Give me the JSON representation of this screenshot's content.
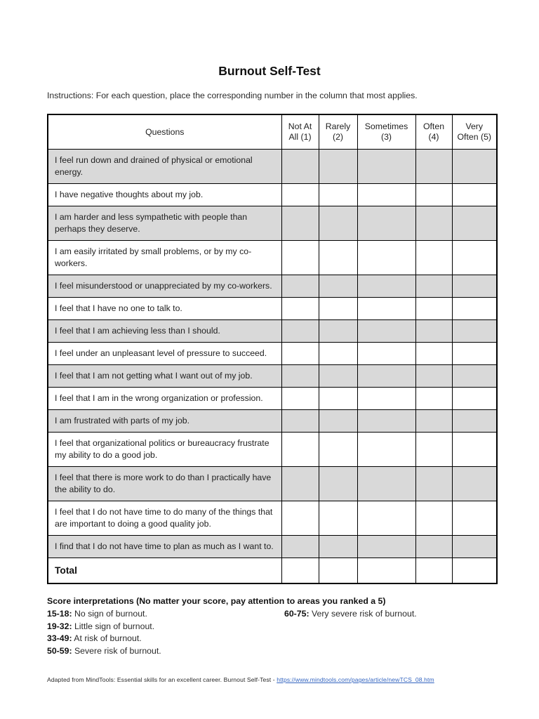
{
  "page": {
    "title": "Burnout Self-Test",
    "instructions": "Instructions: For each question, place the corresponding number in the column that most applies."
  },
  "table": {
    "headers": [
      "Questions",
      "Not At All (1)",
      "Rarely (2)",
      "Sometimes (3)",
      "Often (4)",
      "Very Often (5)"
    ],
    "rows": [
      {
        "question": "I feel run down and drained of physical or emotional energy.",
        "shaded": true
      },
      {
        "question": "I have negative thoughts about my job.",
        "shaded": false
      },
      {
        "question": "I am harder and less sympathetic with people than perhaps they deserve.",
        "shaded": true
      },
      {
        "question": "I am easily irritated by small problems, or by my co-workers.",
        "shaded": false
      },
      {
        "question": "I feel misunderstood or unappreciated by my co-workers.",
        "shaded": true
      },
      {
        "question": "I feel that I have no one to talk to.",
        "shaded": false
      },
      {
        "question": "I feel that I am achieving less than I should.",
        "shaded": true
      },
      {
        "question": "I feel under an unpleasant level of pressure to succeed.",
        "shaded": false
      },
      {
        "question": "I feel that I am not getting what I want out of my job.",
        "shaded": true
      },
      {
        "question": "I feel that I am in the wrong organization or profession.",
        "shaded": false
      },
      {
        "question": "I am frustrated with parts of my job.",
        "shaded": true
      },
      {
        "question": "I feel that organizational politics or bureaucracy frustrate my ability to do a good job.",
        "shaded": false
      },
      {
        "question": "I feel that there is more work to do than I practically have the ability to do.",
        "shaded": true
      },
      {
        "question": "I feel that I do not have time to do many of the things that are important to doing a good quality job.",
        "shaded": false
      },
      {
        "question": "I find that I do not have time to plan as much as I want to.",
        "shaded": true
      },
      {
        "question": "Total",
        "shaded": false,
        "total": true
      }
    ]
  },
  "score": {
    "heading": "Score interpretations (No matter your score, pay attention to areas you ranked a 5)",
    "items": [
      {
        "range": "15-18:",
        "text": "No sign of burnout."
      },
      {
        "range": "19-32:",
        "text": "Little sign of burnout."
      },
      {
        "range": "33-49:",
        "text": "At risk of burnout."
      },
      {
        "range": "50-59:",
        "text": "Severe risk of burnout."
      },
      {
        "range": "60-75:",
        "text": "Very severe risk of burnout."
      }
    ]
  },
  "footer": {
    "text": "Adapted from MindTools: Essential skills for an excellent career. Burnout Self-Test - ",
    "link": "https://www.mindtools.com/pages/article/newTCS_08.htm"
  },
  "colors": {
    "row_shade": "#d9d9d9",
    "border": "#000000",
    "link_blue": "#3465c0"
  }
}
